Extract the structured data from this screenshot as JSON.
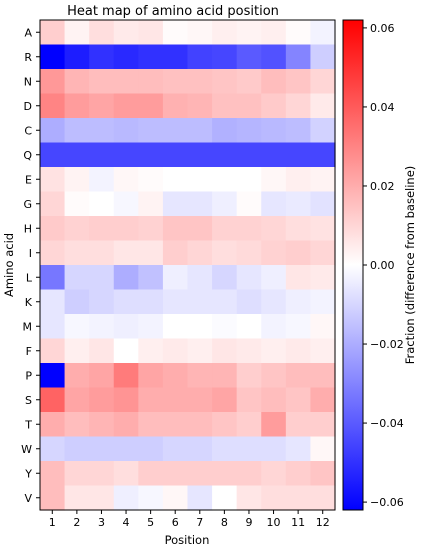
{
  "chart_data": {
    "type": "heatmap",
    "title": "Heat map of amino acid position",
    "xlabel": "Position",
    "ylabel": "Amino acid",
    "colorbar_label": "Fraction (difference from baseline)",
    "x_categories": [
      "1",
      "2",
      "3",
      "4",
      "5",
      "6",
      "7",
      "8",
      "9",
      "10",
      "11",
      "12"
    ],
    "y_categories": [
      "A",
      "R",
      "N",
      "D",
      "C",
      "Q",
      "E",
      "G",
      "H",
      "I",
      "L",
      "K",
      "M",
      "F",
      "P",
      "S",
      "T",
      "W",
      "Y",
      "V"
    ],
    "color_scale": {
      "colormap": "bwr",
      "vmin": -0.062,
      "vmax": 0.062,
      "low_color": "#0000ff",
      "mid_color": "#ffffff",
      "high_color": "#ff0000"
    },
    "colorbar_ticks": [
      {
        "value": 0.06,
        "label": "0.06"
      },
      {
        "value": 0.04,
        "label": "0.04"
      },
      {
        "value": 0.02,
        "label": "0.02"
      },
      {
        "value": 0.0,
        "label": "0.00"
      },
      {
        "value": -0.02,
        "label": "−0.02"
      },
      {
        "value": -0.04,
        "label": "−0.04"
      },
      {
        "value": -0.06,
        "label": "−0.06"
      }
    ],
    "values": [
      [
        0.012,
        0.003,
        0.008,
        0.005,
        0.006,
        0.001,
        0.002,
        0.004,
        0.003,
        0.004,
        0.001,
        -0.003
      ],
      [
        -0.062,
        -0.055,
        -0.05,
        -0.052,
        -0.05,
        -0.05,
        -0.046,
        -0.045,
        -0.04,
        -0.042,
        -0.03,
        -0.012
      ],
      [
        0.025,
        0.018,
        0.016,
        0.016,
        0.016,
        0.015,
        0.015,
        0.014,
        0.013,
        0.016,
        0.014,
        0.01
      ],
      [
        0.03,
        0.024,
        0.022,
        0.024,
        0.024,
        0.019,
        0.018,
        0.015,
        0.015,
        0.013,
        0.01,
        0.005
      ],
      [
        -0.02,
        -0.016,
        -0.016,
        -0.017,
        -0.016,
        -0.016,
        -0.016,
        -0.019,
        -0.018,
        -0.017,
        -0.016,
        -0.011
      ],
      [
        -0.045,
        -0.045,
        -0.045,
        -0.045,
        -0.045,
        -0.045,
        -0.045,
        -0.045,
        -0.045,
        -0.045,
        -0.045,
        -0.045
      ],
      [
        0.007,
        0.003,
        -0.003,
        0.002,
        0.001,
        0.0,
        0.0,
        0.0,
        0.0,
        0.002,
        0.004,
        0.003
      ],
      [
        0.01,
        0.001,
        0.0,
        -0.002,
        0.003,
        -0.006,
        -0.006,
        -0.004,
        0.001,
        -0.006,
        -0.005,
        -0.007
      ],
      [
        0.013,
        0.011,
        0.012,
        0.012,
        0.011,
        0.014,
        0.014,
        0.011,
        0.011,
        0.01,
        0.008,
        0.007
      ],
      [
        0.01,
        0.008,
        0.008,
        0.006,
        0.006,
        0.012,
        0.01,
        0.008,
        0.009,
        0.011,
        0.012,
        0.01
      ],
      [
        -0.033,
        -0.01,
        -0.01,
        -0.02,
        -0.015,
        -0.004,
        -0.006,
        -0.01,
        -0.006,
        -0.004,
        0.006,
        0.005
      ],
      [
        -0.006,
        -0.012,
        -0.01,
        -0.008,
        -0.008,
        -0.006,
        -0.006,
        -0.006,
        -0.008,
        -0.006,
        -0.004,
        -0.003
      ],
      [
        -0.006,
        -0.002,
        -0.003,
        -0.004,
        -0.003,
        0.0,
        0.0,
        -0.001,
        0.0,
        -0.003,
        -0.002,
        0.002
      ],
      [
        0.01,
        0.004,
        0.006,
        0.0,
        0.004,
        0.005,
        0.004,
        0.006,
        0.005,
        0.004,
        0.005,
        0.004
      ],
      [
        -0.062,
        0.02,
        0.022,
        0.032,
        0.022,
        0.02,
        0.018,
        0.018,
        0.012,
        0.014,
        0.016,
        0.016
      ],
      [
        0.038,
        0.022,
        0.024,
        0.026,
        0.02,
        0.02,
        0.02,
        0.022,
        0.014,
        0.016,
        0.014,
        0.02
      ],
      [
        0.02,
        0.016,
        0.018,
        0.02,
        0.016,
        0.016,
        0.016,
        0.014,
        0.012,
        0.024,
        0.012,
        0.012
      ],
      [
        -0.01,
        -0.012,
        -0.012,
        -0.012,
        -0.012,
        -0.01,
        -0.01,
        -0.008,
        -0.008,
        -0.008,
        -0.006,
        0.002
      ],
      [
        0.016,
        0.01,
        0.01,
        0.008,
        0.012,
        0.012,
        0.012,
        0.012,
        0.012,
        0.01,
        0.012,
        0.014
      ],
      [
        0.016,
        0.006,
        0.006,
        -0.004,
        -0.002,
        0.002,
        -0.006,
        0.0,
        0.006,
        0.008,
        0.008,
        0.008
      ]
    ]
  }
}
